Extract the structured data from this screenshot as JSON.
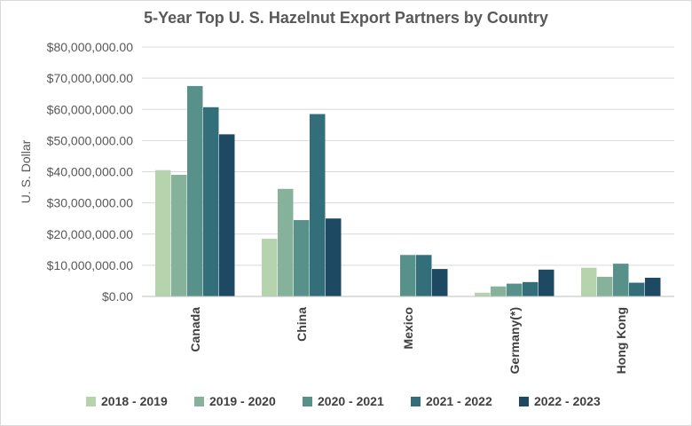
{
  "chart_data": {
    "type": "bar",
    "title": "5-Year Top U. S. Hazelnut Export Partners by Country",
    "xlabel": "",
    "ylabel": "U. S. Dollar",
    "ylim": [
      0,
      80000000
    ],
    "yticks": [
      0,
      10000000,
      20000000,
      30000000,
      40000000,
      50000000,
      60000000,
      70000000,
      80000000
    ],
    "ytick_labels": [
      "$0.00",
      "$10,000,000.00",
      "$20,000,000.00",
      "$30,000,000.00",
      "$40,000,000.00",
      "$50,000,000.00",
      "$60,000,000.00",
      "$70,000,000.00",
      "$80,000,000.00"
    ],
    "categories": [
      "Canada",
      "China",
      "Mexico",
      "Germany(*)",
      "Hong Kong"
    ],
    "series": [
      {
        "name": "2018 - 2019",
        "color": "#b5d4ae",
        "values": [
          40500000,
          18500000,
          100000,
          1200000,
          9200000
        ]
      },
      {
        "name": "2019 - 2020",
        "color": "#86b29c",
        "values": [
          39000000,
          34500000,
          0,
          3200000,
          6300000
        ]
      },
      {
        "name": "2020 - 2021",
        "color": "#58918a",
        "values": [
          67500000,
          24500000,
          13300000,
          4100000,
          10500000
        ]
      },
      {
        "name": "2021 - 2022",
        "color": "#336f7a",
        "values": [
          60700000,
          58500000,
          13300000,
          4600000,
          4400000
        ]
      },
      {
        "name": "2022 - 2023",
        "color": "#1e4962",
        "values": [
          52000000,
          25000000,
          8800000,
          8600000,
          6000000
        ]
      }
    ],
    "grid": true,
    "legend_position": "bottom"
  }
}
